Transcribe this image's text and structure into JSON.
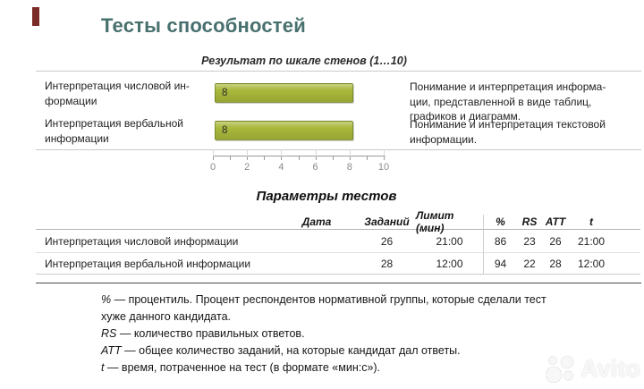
{
  "colors": {
    "accent": "#7B2B28",
    "title_text": "#47706E",
    "bar": "#A9B83B"
  },
  "title": "Тесты способностей",
  "ability_chart": {
    "subtitle": "Результат по шкале стенов (1…10)",
    "rows": [
      {
        "label": "Интерпретация числовой ин-\nформации",
        "value": 8,
        "description": "Понимание и интерпретация информа-\nции, представленной в виде таблиц,\nграфиков и диаграмм."
      },
      {
        "label": "Интерпретация вербальной\nинформации",
        "value": 8,
        "description": "Понимание и интерпретация текстовой\nинформации."
      }
    ],
    "axis": {
      "min": 0,
      "max": 10,
      "tick_labels": [
        0,
        2,
        4,
        6,
        8,
        10
      ]
    }
  },
  "chart_data": {
    "type": "bar",
    "orientation": "horizontal",
    "title": "Результат по шкале стенов (1…10)",
    "categories": [
      "Интерпретация числовой информации",
      "Интерпретация вербальной информации"
    ],
    "values": [
      8,
      8
    ],
    "xlabel": "",
    "ylabel": "",
    "xlim": [
      0,
      10
    ],
    "xticks": [
      0,
      2,
      4,
      6,
      8,
      10
    ],
    "bar_color": "#A9B83B",
    "data_labels": [
      "8",
      "8"
    ]
  },
  "params_table": {
    "title": "Параметры тестов",
    "headers": [
      "Дата",
      "Заданий",
      "Лимит (мин)",
      "%",
      "RS",
      "ATT",
      "t"
    ],
    "rows": [
      {
        "name": "Интерпретация числовой информации",
        "date": "",
        "tasks": "26",
        "limit": "21:00",
        "percent": "86",
        "rs": "23",
        "att": "26",
        "t": "21:00"
      },
      {
        "name": "Интерпретация вербальной информации",
        "date": "",
        "tasks": "28",
        "limit": "12:00",
        "percent": "94",
        "rs": "22",
        "att": "28",
        "t": "12:00"
      }
    ]
  },
  "footnotes": [
    {
      "symbol": "%",
      "text": "— процентиль. Процент респондентов нормативной группы, которые сделали тест хуже данного кандидата."
    },
    {
      "symbol": "RS",
      "text": "— количество правильных ответов."
    },
    {
      "symbol": "ATT",
      "text": "— общее количество заданий, на которые кандидат дал ответы."
    },
    {
      "symbol": "t",
      "text": "— время, потраченное на тест (в формате «мин:с»)."
    }
  ],
  "watermark": {
    "text": "Avito"
  }
}
